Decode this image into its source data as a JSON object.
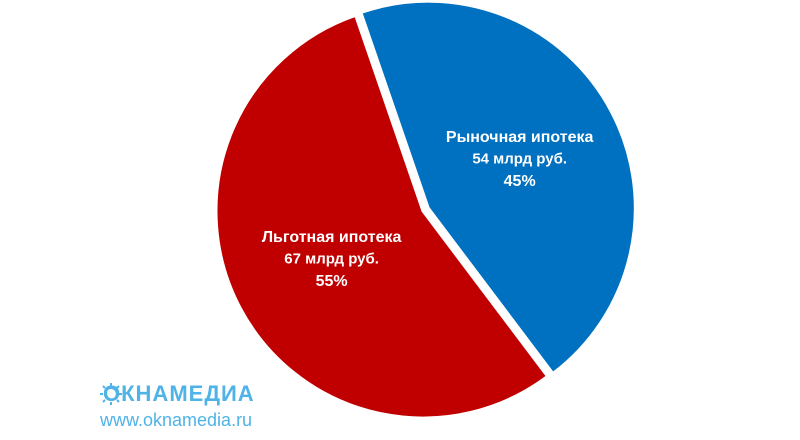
{
  "chart_data": {
    "type": "pie",
    "categories": [
      "Рыночная ипотека",
      "Льготная ипотека"
    ],
    "values": [
      45,
      55
    ],
    "value_labels": [
      "45%",
      "55%"
    ],
    "amount_labels": [
      "54 млрд руб.",
      "67 млрд руб."
    ],
    "colors": [
      "#0070c0",
      "#c00000"
    ]
  },
  "logo": {
    "name": "ОКНАМЕДИА",
    "url": "www.oknamedia.ru"
  }
}
